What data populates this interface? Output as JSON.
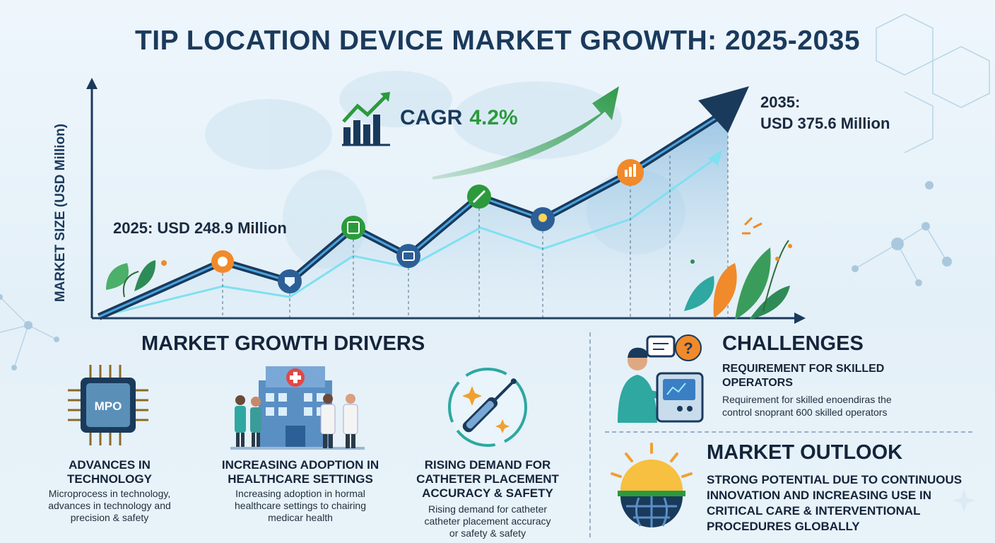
{
  "title": "TIP LOCATION DEVICE MARKET GROWTH: 2025-2035",
  "chart": {
    "y_axis_label": "MARKET SIZE (USD Million)",
    "start_label": "2025: USD 248.9 Million",
    "end_label_line1": "2035:",
    "end_label_line2": "USD 375.6 Million",
    "cagr_label": "CAGR",
    "cagr_value": "4.2%"
  },
  "drivers": {
    "title": "MARKET GROWTH DRIVERS",
    "items": [
      {
        "heading_line1": "ADVANCES IN",
        "heading_line2": "TECHNOLOGY",
        "text_line1": "Microprocess in technology,",
        "text_line2": "advances in technology and",
        "text_line3": "precision & safety",
        "chip_label": "MPO"
      },
      {
        "heading_line1": "INCREASING ADOPTION IN",
        "heading_line2": "HEALTHCARE SETTINGS",
        "text_line1": "Increasing adoption in hormal",
        "text_line2": "healthcare settings to chairing",
        "text_line3": "medicar health"
      },
      {
        "heading_line1": "RISING DEMAND FOR",
        "heading_line2": "CATHETER PLACEMENT",
        "heading_line3": "ACCURACY & SAFETY",
        "text_line1": "Rising demand for catheter",
        "text_line2": "catheter placement accuracy",
        "text_line3": "or safety & safety"
      }
    ]
  },
  "challenges": {
    "title": "CHALLENGES",
    "heading_line1": "REQUIREMENT FOR SKILLED",
    "heading_line2": "OPERATORS",
    "text_line1": "Requirement for skilled enoendiras the",
    "text_line2": "control snoprant 600 skilled operators"
  },
  "outlook": {
    "title": "MARKET OUTLOOK",
    "line1": "STRONG POTENTIAL DUE TO CONTINUOUS",
    "line2": "INNOVATION AND INCREASING USE IN",
    "line3": "CRITICAL CARE & INTERVENTIONAL",
    "line4": "PROCEDURES GLOBALLY"
  },
  "colors": {
    "navy": "#1a3a5c",
    "green": "#2c9a3c",
    "orange": "#f08a2a",
    "teal": "#2ea8a0",
    "accent_blue": "#3a7fc4"
  }
}
